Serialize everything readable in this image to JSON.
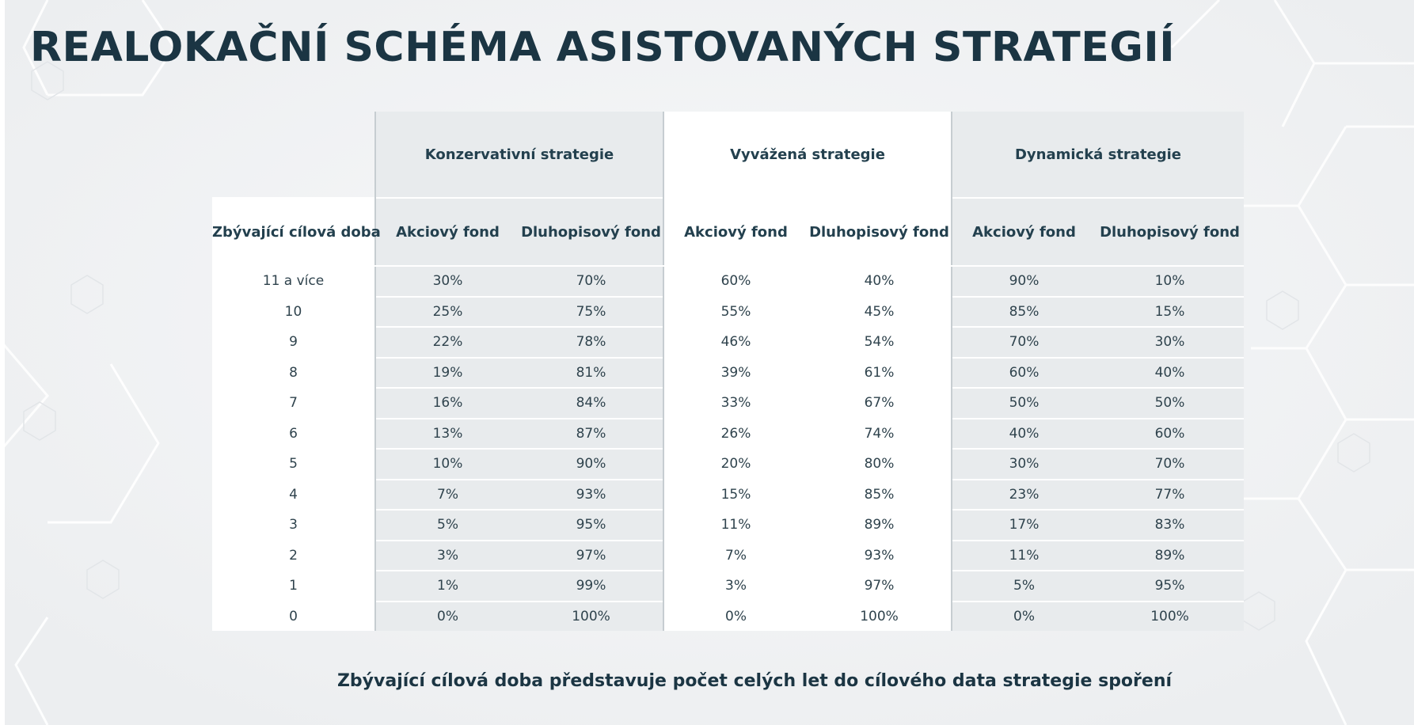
{
  "title": "REALOKAČNÍ SCHÉMA ASISTOVANÝCH STRATEGIÍ",
  "table": {
    "row_header": "Zbývající cílová doba",
    "groups": [
      {
        "label": "Konzervativní strategie",
        "cols": [
          "Akciový fond",
          "Dluhopisový fond"
        ]
      },
      {
        "label": "Vyvážená strategie",
        "cols": [
          "Akciový fond",
          "Dluhopisový fond"
        ]
      },
      {
        "label": "Dynamická strategie",
        "cols": [
          "Akciový fond",
          "Dluhopisový fond"
        ]
      }
    ],
    "rows": [
      {
        "label": "11 a více",
        "values": [
          "30%",
          "70%",
          "60%",
          "40%",
          "90%",
          "10%"
        ]
      },
      {
        "label": "10",
        "values": [
          "25%",
          "75%",
          "55%",
          "45%",
          "85%",
          "15%"
        ]
      },
      {
        "label": "9",
        "values": [
          "22%",
          "78%",
          "46%",
          "54%",
          "70%",
          "30%"
        ]
      },
      {
        "label": "8",
        "values": [
          "19%",
          "81%",
          "39%",
          "61%",
          "60%",
          "40%"
        ]
      },
      {
        "label": "7",
        "values": [
          "16%",
          "84%",
          "33%",
          "67%",
          "50%",
          "50%"
        ]
      },
      {
        "label": "6",
        "values": [
          "13%",
          "87%",
          "26%",
          "74%",
          "40%",
          "60%"
        ]
      },
      {
        "label": "5",
        "values": [
          "10%",
          "90%",
          "20%",
          "80%",
          "30%",
          "70%"
        ]
      },
      {
        "label": "4",
        "values": [
          "7%",
          "93%",
          "15%",
          "85%",
          "23%",
          "77%"
        ]
      },
      {
        "label": "3",
        "values": [
          "5%",
          "95%",
          "11%",
          "89%",
          "17%",
          "83%"
        ]
      },
      {
        "label": "2",
        "values": [
          "3%",
          "97%",
          "7%",
          "93%",
          "11%",
          "89%"
        ]
      },
      {
        "label": "1",
        "values": [
          "1%",
          "99%",
          "3%",
          "97%",
          "5%",
          "95%"
        ]
      },
      {
        "label": "0",
        "values": [
          "0%",
          "100%",
          "0%",
          "100%",
          "0%",
          "100%"
        ]
      }
    ]
  },
  "footnote": "Zbývající cílová doba představuje počet celých let do cílového data strategie spoření",
  "colors": {
    "title": "#1b3543",
    "group_cell": "#e8ebed",
    "background": "#f3f4f5",
    "divider": "#c6cdd1"
  }
}
